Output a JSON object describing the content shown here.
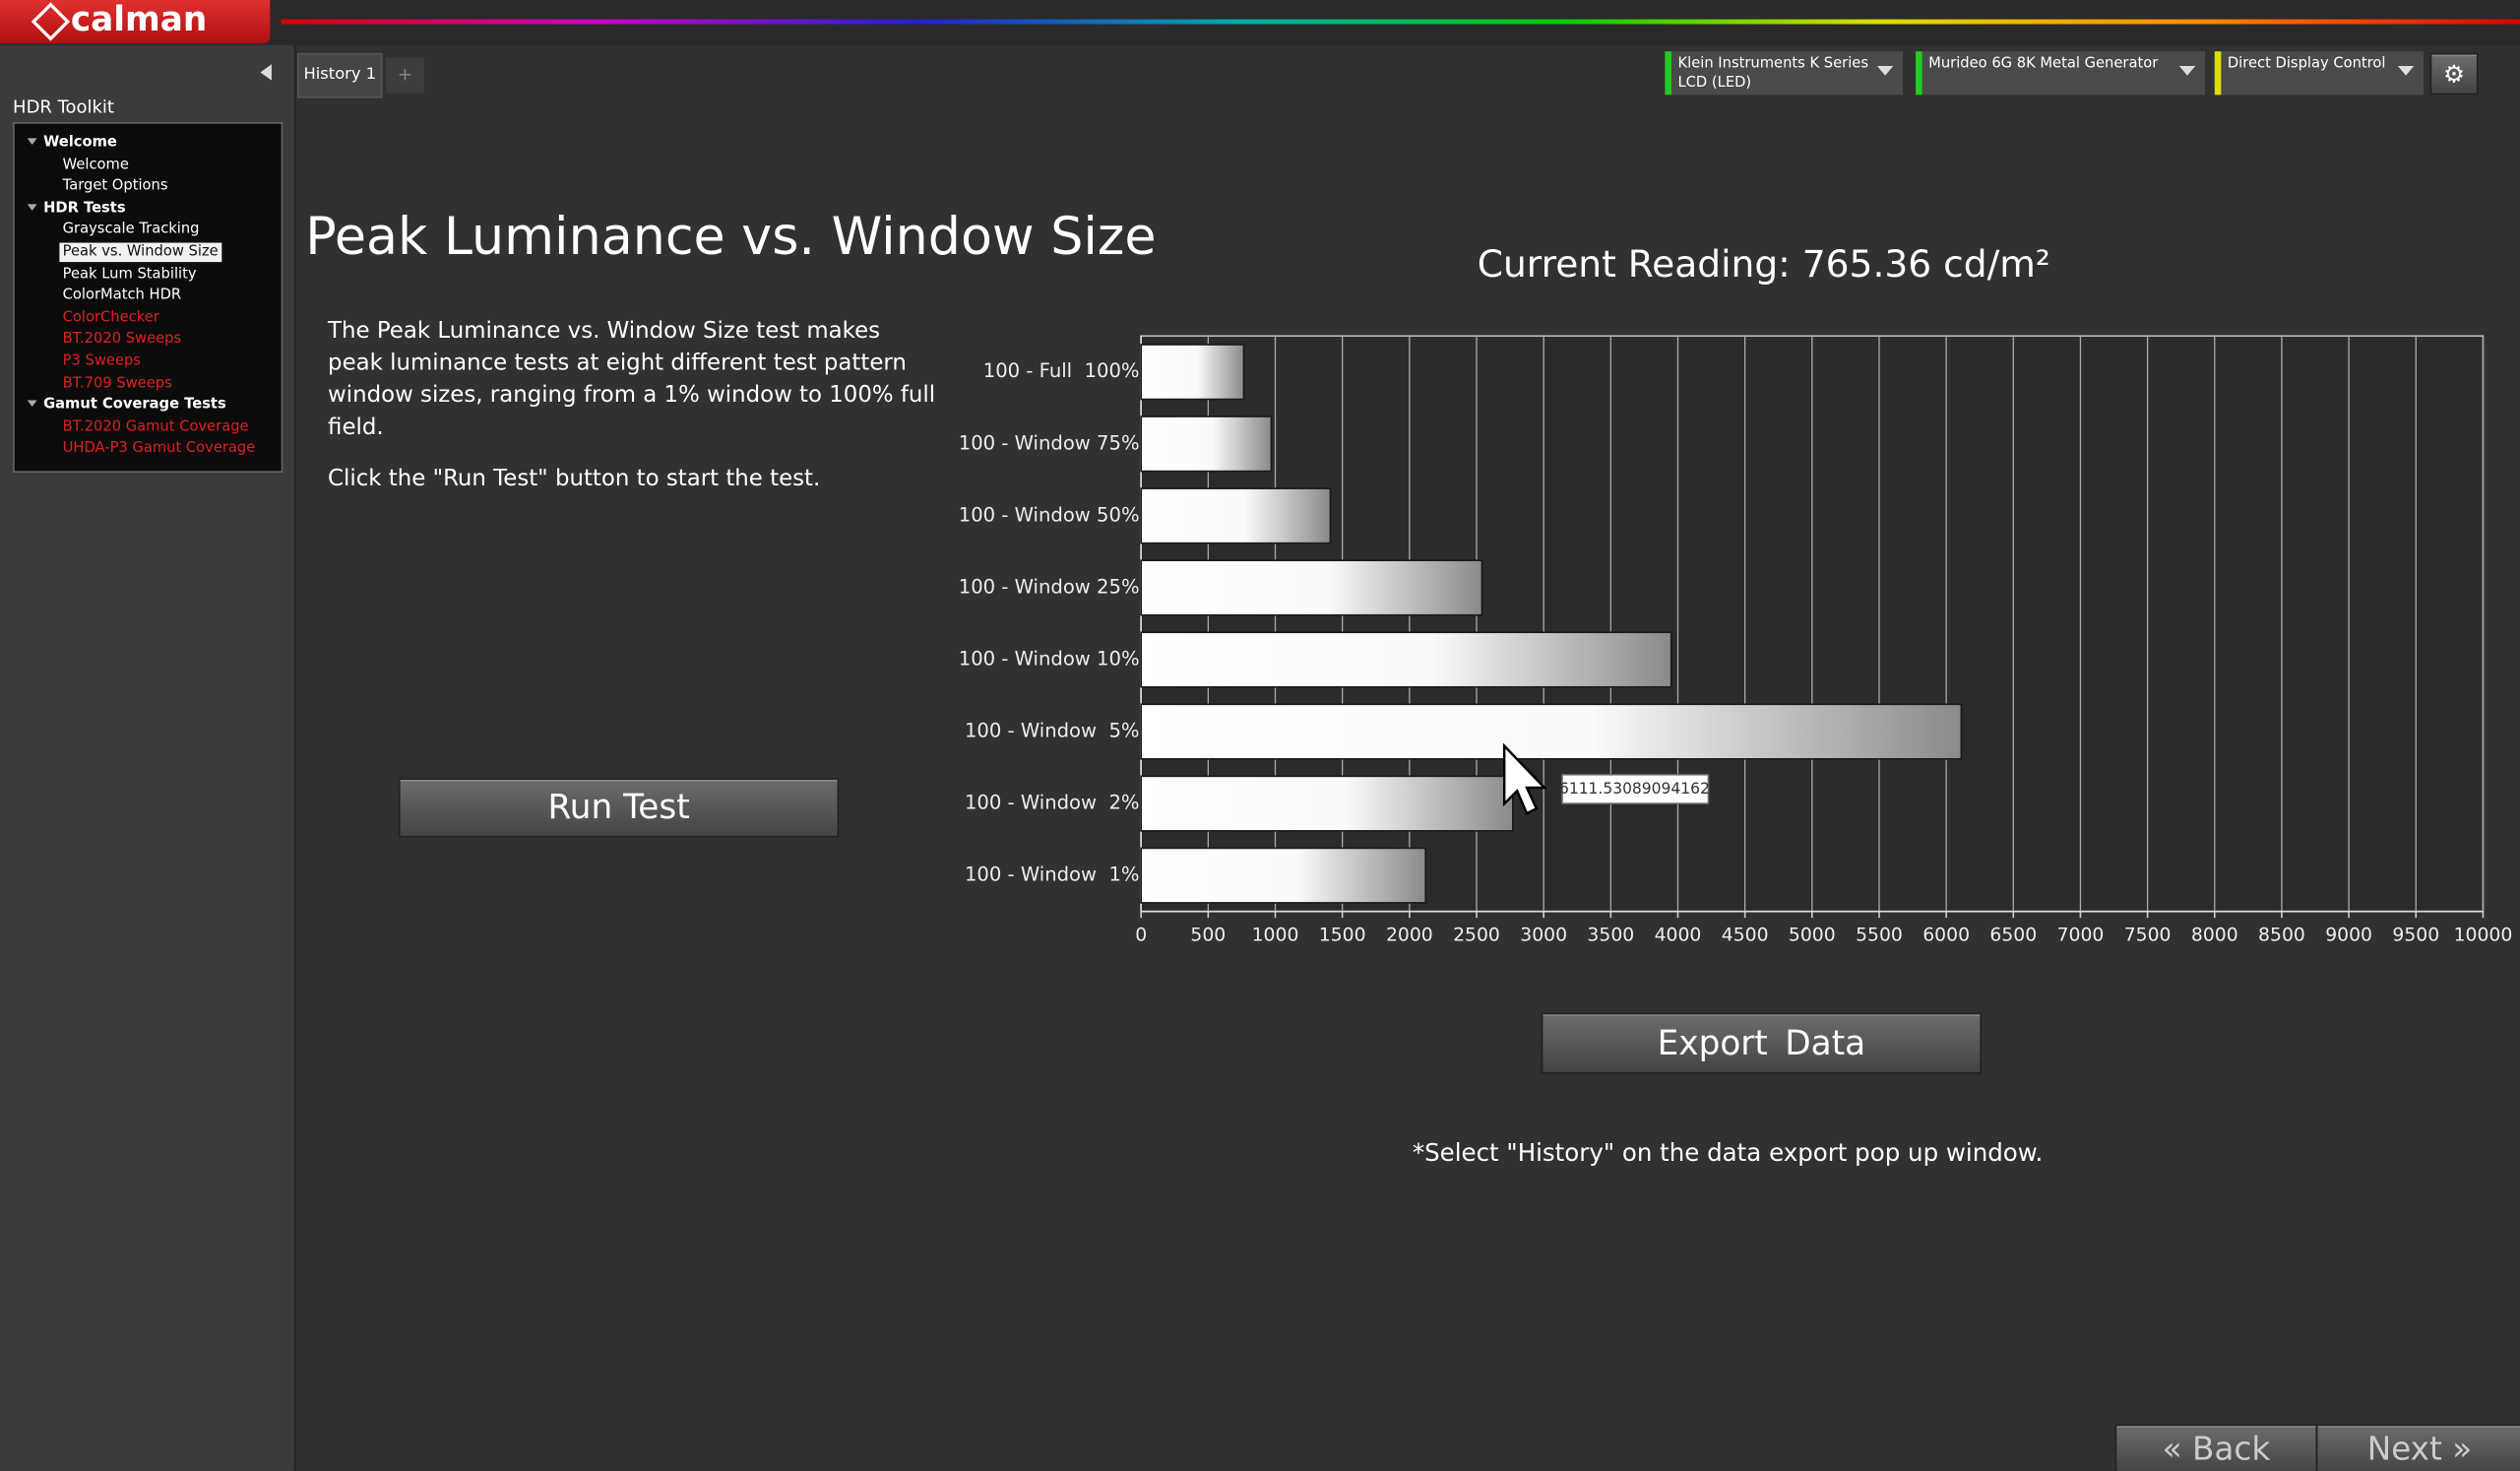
{
  "app": {
    "logo": "calman"
  },
  "sidebar": {
    "title": "HDR Toolkit",
    "tree": [
      {
        "label": "Welcome",
        "children": [
          {
            "label": "Welcome",
            "color": "#ffffff"
          },
          {
            "label": "Target Options",
            "color": "#ffffff"
          }
        ]
      },
      {
        "label": "HDR Tests",
        "children": [
          {
            "label": "Grayscale Tracking",
            "color": "#ffffff"
          },
          {
            "label": "Peak vs. Window Size",
            "color": "#ffffff",
            "selected": true
          },
          {
            "label": "Peak Lum Stability",
            "color": "#ffffff"
          },
          {
            "label": "ColorMatch HDR",
            "color": "#ffffff"
          },
          {
            "label": "ColorChecker",
            "color": "#e02020"
          },
          {
            "label": "BT.2020 Sweeps",
            "color": "#e02020"
          },
          {
            "label": "P3 Sweeps",
            "color": "#e02020"
          },
          {
            "label": "BT.709 Sweeps",
            "color": "#e02020"
          }
        ]
      },
      {
        "label": "Gamut Coverage Tests",
        "children": [
          {
            "label": "BT.2020 Gamut Coverage",
            "color": "#e02020"
          },
          {
            "label": "UHDA-P3 Gamut Coverage",
            "color": "#e02020"
          }
        ]
      }
    ]
  },
  "tabs": [
    "History 1"
  ],
  "devices": [
    {
      "lines": [
        "Klein Instruments K Series",
        "LCD (LED)"
      ],
      "status_color": "#22cc22"
    },
    {
      "lines": [
        "Murideo 6G 8K Metal Generator"
      ],
      "status_color": "#22cc22"
    },
    {
      "lines": [
        "Direct Display Control"
      ],
      "status_color": "#dddd00"
    }
  ],
  "page": {
    "title": "Peak Luminance vs. Window Size",
    "description": [
      "The Peak Luminance vs. Window Size test makes peak luminance tests at eight different test pattern window sizes, ranging from a 1% window to 100% full field.",
      "Click the \"Run Test\" button to start the test."
    ],
    "run_button": "Run Test",
    "current_reading": "Current Reading: 765.36 cd/m²",
    "export_button": "Export  Data",
    "footnote": "*Select \"History\" on the data export pop up window."
  },
  "nav": {
    "back": "Back",
    "next": "Next"
  },
  "chart_data": {
    "type": "hbar",
    "categories": [
      "100 - Full  100%",
      "100 - Window 75%",
      "100 - Window 50%",
      "100 - Window 25%",
      "100 - Window 10%",
      "100 - Window  5%",
      "100 - Window  2%",
      "100 - Window  1%"
    ],
    "values": [
      765,
      970,
      1410,
      2540,
      3950,
      6111.53089094162,
      2770,
      2120
    ],
    "xlim": [
      0,
      10000
    ],
    "xticks": [
      0,
      500,
      1000,
      1500,
      2000,
      2500,
      3000,
      3500,
      4000,
      4500,
      5000,
      5500,
      6000,
      6500,
      7000,
      7500,
      8000,
      8500,
      9000,
      9500,
      10000
    ],
    "grid": true,
    "tooltip_index": 5
  }
}
